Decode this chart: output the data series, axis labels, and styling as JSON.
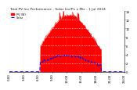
{
  "title": "Total PV Inv Performance - Solar Inv/Pv x Mtr - 1 Jul 2024",
  "legend_pv": "PV (W)",
  "legend_solar": "Solar",
  "bg_color": "#ffffff",
  "plot_bg": "#ffffff",
  "grid_color": "#aaaaaa",
  "bar_color": "#ff0000",
  "line_color": "#0000ff",
  "y_ticks_right": [
    "14",
    "12",
    "10",
    "8",
    "6",
    "4",
    "2",
    "0"
  ],
  "y_max": 14,
  "n_points": 288,
  "title_fontsize": 3.2,
  "tick_fontsize": 2.8,
  "legend_fontsize": 2.5
}
